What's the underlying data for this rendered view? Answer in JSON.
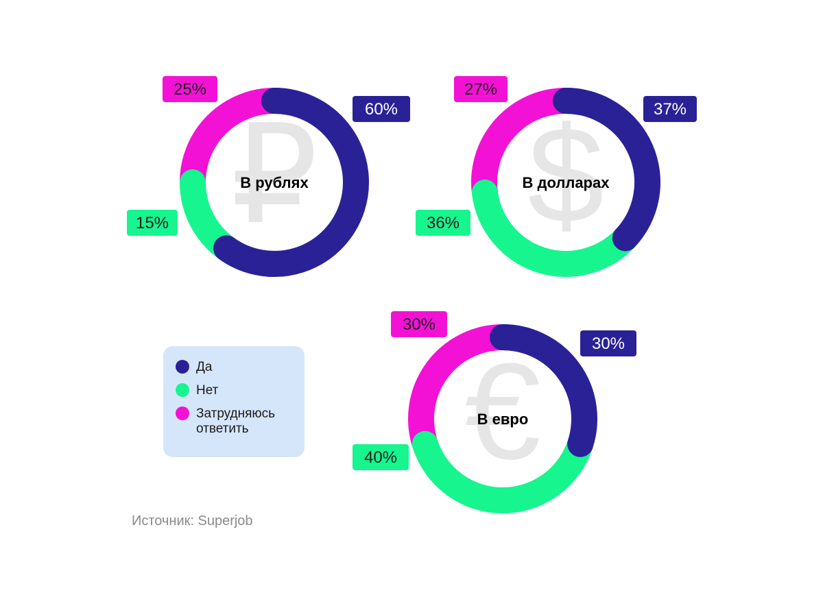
{
  "colors": {
    "yes": "#2b2196",
    "no": "#17f58f",
    "undecided": "#f411d6",
    "symbol": "#e6e6e6"
  },
  "legend": {
    "items": [
      {
        "label": "Да",
        "color": "#2b2196"
      },
      {
        "label": "Нет",
        "color": "#17f58f"
      },
      {
        "label": "Затрудняюсь ответить",
        "color": "#f411d6"
      }
    ]
  },
  "source": "Источник: Superjob",
  "chart_data": [
    {
      "type": "pie",
      "title": "В рублях",
      "symbol": "₽",
      "categories": [
        "Да",
        "Нет",
        "Затрудняюсь ответить"
      ],
      "values": [
        60,
        15,
        25
      ],
      "labels": [
        "60%",
        "15%",
        "25%"
      ]
    },
    {
      "type": "pie",
      "title": "В долларах",
      "symbol": "$",
      "categories": [
        "Да",
        "Нет",
        "Затрудняюсь ответить"
      ],
      "values": [
        37,
        36,
        27
      ],
      "labels": [
        "37%",
        "36%",
        "27%"
      ]
    },
    {
      "type": "pie",
      "title": "В евро",
      "symbol": "€",
      "categories": [
        "Да",
        "Нет",
        "Затрудняюсь ответить"
      ],
      "values": [
        30,
        40,
        30
      ],
      "labels": [
        "30%",
        "40%",
        "30%"
      ]
    }
  ]
}
